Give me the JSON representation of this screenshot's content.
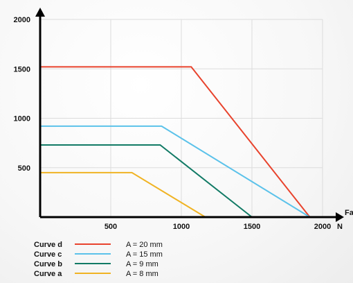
{
  "chart_data": {
    "type": "line",
    "xlabel": "Fa",
    "xunit": "N",
    "ylabel": "",
    "xlim": [
      0,
      2000
    ],
    "ylim": [
      0,
      2000
    ],
    "x_ticks": [
      500,
      1000,
      1500,
      2000
    ],
    "y_ticks": [
      500,
      1000,
      1500,
      2000
    ],
    "grid": true,
    "series": [
      {
        "name": "Curve d",
        "desc": "A = 20 mm",
        "color": "#e8432d",
        "x": [
          0,
          1070,
          1910
        ],
        "y": [
          1520,
          1520,
          0
        ]
      },
      {
        "name": "Curve c",
        "desc": "A = 15 mm",
        "color": "#5bc2ea",
        "x": [
          0,
          860,
          1910
        ],
        "y": [
          920,
          920,
          0
        ]
      },
      {
        "name": "Curve b",
        "desc": "A = 9 mm",
        "color": "#117a65",
        "x": [
          0,
          850,
          1500
        ],
        "y": [
          730,
          730,
          0
        ]
      },
      {
        "name": "Curve a",
        "desc": "A = 8 mm",
        "color": "#f0b323",
        "x": [
          0,
          650,
          1170
        ],
        "y": [
          450,
          450,
          0
        ]
      }
    ]
  }
}
